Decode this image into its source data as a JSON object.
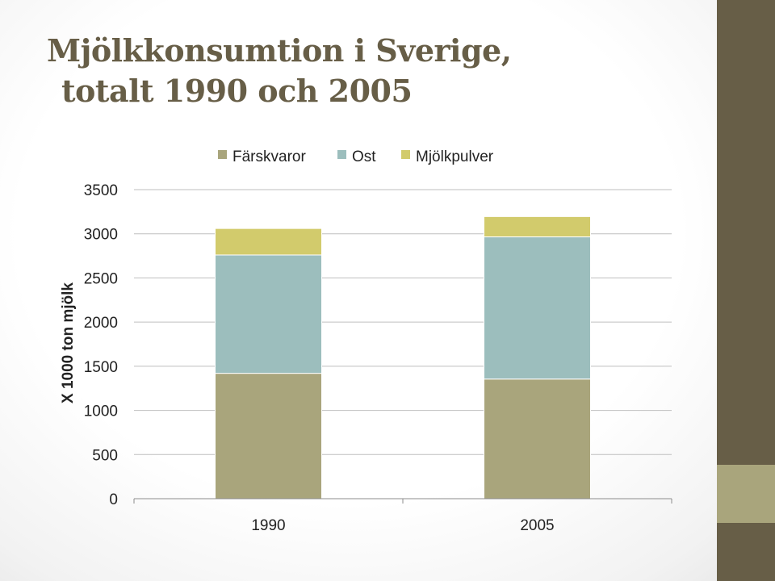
{
  "slide": {
    "title_line1": "Mjölkkonsumtion i Sverige,",
    "title_line2": "totalt 1990 och 2005",
    "colors": {
      "side_bar": "#675e47",
      "side_accent": "#a9a57c",
      "title": "#675e47"
    }
  },
  "chart_data": {
    "type": "bar",
    "stacked": true,
    "categories": [
      "1990",
      "2005"
    ],
    "series": [
      {
        "name": "Färskvaror",
        "values": [
          1420,
          1355
        ],
        "color": "#a9a57c"
      },
      {
        "name": "Ost",
        "values": [
          1340,
          1610
        ],
        "color": "#9cbebd"
      },
      {
        "name": "Mjölkpulver",
        "values": [
          300,
          230
        ],
        "color": "#d2cb6c"
      }
    ],
    "ylabel": "X 1000 ton mjölk",
    "ylim": [
      0,
      3500
    ],
    "yticks": [
      0,
      500,
      1000,
      1500,
      2000,
      2500,
      3000,
      3500
    ],
    "grid": true,
    "legend": "top"
  }
}
